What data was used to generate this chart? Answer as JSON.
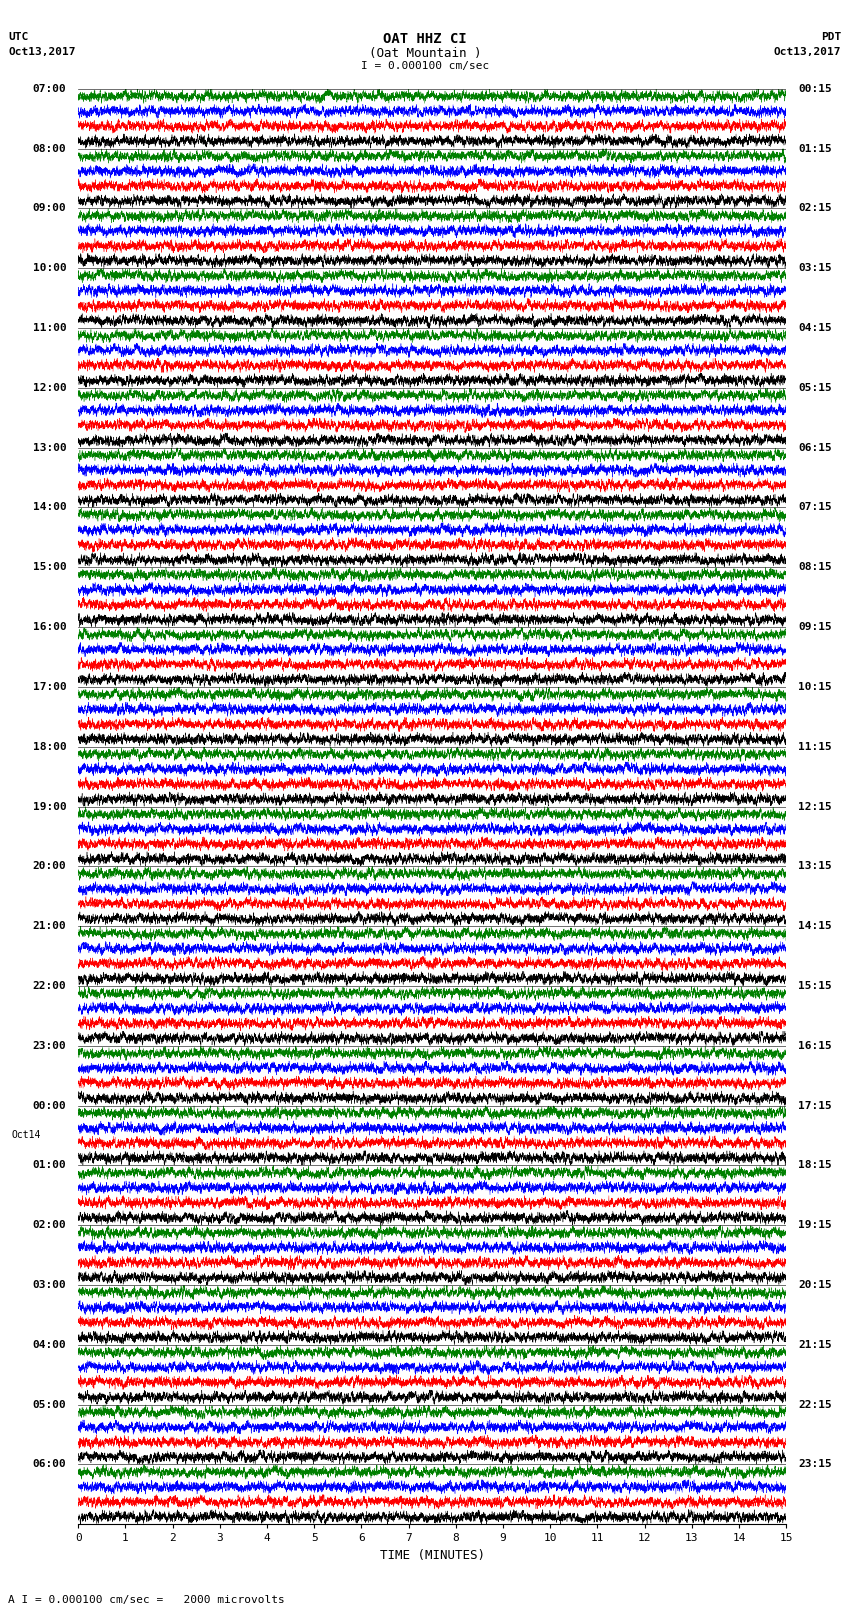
{
  "title_line1": "OAT HHZ CI",
  "title_line2": "(Oat Mountain )",
  "title_line3": "I = 0.000100 cm/sec",
  "label_utc": "UTC",
  "label_pdt": "PDT",
  "date_left": "Oct13,2017",
  "date_right": "Oct13,2017",
  "xlabel": "TIME (MINUTES)",
  "footer": "A I = 0.000100 cm/sec =   2000 microvolts",
  "left_times": [
    "07:00",
    "08:00",
    "09:00",
    "10:00",
    "11:00",
    "12:00",
    "13:00",
    "14:00",
    "15:00",
    "16:00",
    "17:00",
    "18:00",
    "19:00",
    "20:00",
    "21:00",
    "22:00",
    "23:00",
    "00:00",
    "01:00",
    "02:00",
    "03:00",
    "04:00",
    "05:00",
    "06:00"
  ],
  "right_times": [
    "00:15",
    "01:15",
    "02:15",
    "03:15",
    "04:15",
    "05:15",
    "06:15",
    "07:15",
    "08:15",
    "09:15",
    "10:15",
    "11:15",
    "12:15",
    "13:15",
    "14:15",
    "15:15",
    "16:15",
    "17:15",
    "18:15",
    "19:15",
    "20:15",
    "21:15",
    "22:15",
    "23:15"
  ],
  "oct14_idx": 17,
  "colors": [
    "black",
    "red",
    "blue",
    "green"
  ],
  "n_traces": 96,
  "n_points": 9000,
  "amplitude": 0.48,
  "xmin": 0,
  "xmax": 15,
  "bg_color": "white",
  "font_size_title": 10,
  "font_size_labels": 8,
  "font_size_ticks": 8,
  "linewidth": 0.3
}
